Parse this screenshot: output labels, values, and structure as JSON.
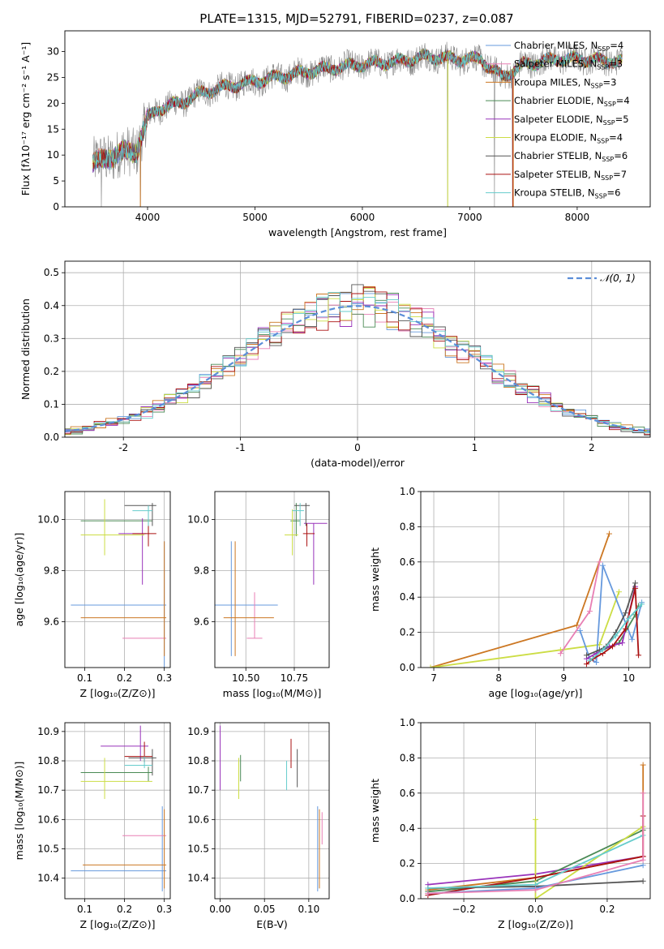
{
  "figure_title": "PLATE=1315, MJD=52791, FIBERID=0237, z=0.087",
  "colors": {
    "chabrier_miles": "#6699dd",
    "salpeter_miles": "#e87fb4",
    "kroupa_miles": "#cc7722",
    "chabrier_elodie": "#4a8a55",
    "salpeter_elodie": "#9933bb",
    "kroupa_elodie": "#ccdd44",
    "chabrier_stelib": "#555555",
    "salpeter_stelib": "#aa1111",
    "kroupa_stelib": "#66cccc",
    "data": "#888888",
    "normal": "#5b8ed8"
  },
  "chart_data": [
    {
      "id": "spectrum",
      "type": "line",
      "title": "PLATE=1315, MJD=52791, FIBERID=0237, z=0.087",
      "xlabel": "wavelength [Angstrom, rest frame]",
      "ylabel": "Flux [fλ10⁻¹⁷ erg cm⁻² s⁻¹ A⁻¹]",
      "xlim": [
        3230,
        8680
      ],
      "ylim": [
        0,
        34
      ],
      "xticks": [
        4000,
        5000,
        6000,
        7000,
        8000
      ],
      "yticks": [
        0,
        5,
        10,
        15,
        20,
        25,
        30
      ],
      "legend_position": "top-right",
      "legend": [
        {
          "label": "Chabrier MILES, N",
          "sub": "SSP",
          "tail": "=4"
        },
        {
          "label": "Salpeter MILES, N",
          "sub": "SSP",
          "tail": "=3"
        },
        {
          "label": "Kroupa MILES, N",
          "sub": "SSP",
          "tail": "=3"
        },
        {
          "label": "Chabrier ELODIE, N",
          "sub": "SSP",
          "tail": "=4"
        },
        {
          "label": "Salpeter ELODIE, N",
          "sub": "SSP",
          "tail": "=5"
        },
        {
          "label": "Kroupa ELODIE, N",
          "sub": "SSP",
          "tail": "=4"
        },
        {
          "label": "Chabrier STELIB, N",
          "sub": "SSP",
          "tail": "=6"
        },
        {
          "label": "Salpeter STELIB, N",
          "sub": "SSP",
          "tail": "=7"
        },
        {
          "label": "Kroupa STELIB, N",
          "sub": "SSP",
          "tail": "=6"
        }
      ],
      "continuum": [
        [
          3500,
          8.5
        ],
        [
          3700,
          10
        ],
        [
          3900,
          11
        ],
        [
          3950,
          14
        ],
        [
          4000,
          17
        ],
        [
          4100,
          19
        ],
        [
          4300,
          20
        ],
        [
          4500,
          22
        ],
        [
          4800,
          23.5
        ],
        [
          5200,
          25
        ],
        [
          5600,
          26.5
        ],
        [
          6000,
          27.5
        ],
        [
          6300,
          28
        ],
        [
          6600,
          29
        ],
        [
          6900,
          28.5
        ],
        [
          7100,
          28.5
        ],
        [
          7300,
          25
        ],
        [
          7500,
          27.5
        ],
        [
          7800,
          28.5
        ],
        [
          8100,
          28.5
        ],
        [
          8400,
          28
        ]
      ],
      "dips": [
        [
          3933,
          0
        ],
        [
          6795,
          0
        ],
        [
          7400,
          0
        ],
        [
          3570,
          0
        ],
        [
          7230,
          0
        ]
      ]
    },
    {
      "id": "residuals",
      "type": "histogram",
      "xlabel": "(data-model)/error",
      "ylabel": "Normed distribution",
      "xlim": [
        -2.5,
        2.5
      ],
      "ylim": [
        0,
        0.535
      ],
      "xticks": [
        -2,
        -1,
        0,
        1,
        2
      ],
      "yticks": [
        0.0,
        0.1,
        0.2,
        0.3,
        0.4,
        0.5
      ],
      "legend_position": "top-right",
      "legend_label": "𝒩(0, 1)",
      "normal_mean": 0,
      "normal_sigma": 1,
      "bin_width": 0.1
    },
    {
      "id": "age_vs_Z",
      "type": "errorbar",
      "xlabel": "Z [log₁₀(Z/Z⊙)]",
      "ylabel": "age  [log₁₀(age/yr)]",
      "xlim": [
        0.05,
        0.315
      ],
      "ylim": [
        9.42,
        10.11
      ],
      "xticks": [
        0.1,
        0.2,
        0.3
      ],
      "yticks": [
        9.6,
        9.8,
        10.0
      ],
      "points": [
        {
          "model": "chabrier_miles",
          "x": 0.3,
          "y": 9.665,
          "xerr": [
            0.235,
            0.005
          ],
          "yerr": [
            0.25,
            0.25
          ]
        },
        {
          "model": "salpeter_miles",
          "x": 0.3,
          "y": 9.535,
          "xerr": [
            0.105,
            0.005
          ],
          "yerr": [
            0.0,
            0.0
          ]
        },
        {
          "model": "kroupa_miles",
          "x": 0.3,
          "y": 9.615,
          "xerr": [
            0.21,
            0.005
          ],
          "yerr": [
            0.15,
            0.3
          ]
        },
        {
          "model": "chabrier_elodie",
          "x": 0.26,
          "y": 9.995,
          "xerr": [
            0.17,
            0.01
          ],
          "yerr": [
            0.06,
            0.06
          ]
        },
        {
          "model": "salpeter_elodie",
          "x": 0.245,
          "y": 9.945,
          "xerr": [
            0.06,
            0.01
          ],
          "yerr": [
            0.2,
            0.06
          ]
        },
        {
          "model": "kroupa_elodie",
          "x": 0.15,
          "y": 9.94,
          "xerr": [
            0.06,
            0.1
          ],
          "yerr": [
            0.08,
            0.14
          ]
        },
        {
          "model": "chabrier_stelib",
          "x": 0.27,
          "y": 10.055,
          "xerr": [
            0.07,
            0.01
          ],
          "yerr": [
            0.08,
            0.01
          ]
        },
        {
          "model": "salpeter_stelib",
          "x": 0.26,
          "y": 9.945,
          "xerr": [
            0.04,
            0.02
          ],
          "yerr": [
            0.05,
            0.04
          ]
        },
        {
          "model": "kroupa_stelib",
          "x": 0.26,
          "y": 10.035,
          "xerr": [
            0.04,
            0.01
          ],
          "yerr": [
            0.06,
            0.02
          ]
        }
      ]
    },
    {
      "id": "age_vs_mass",
      "type": "errorbar",
      "xlabel": "mass [log₁₀(M/M⊙)]",
      "xlim": [
        10.34,
        10.93
      ],
      "ylim": [
        9.42,
        10.11
      ],
      "xticks": [
        10.5,
        10.75
      ],
      "xtick_labels": [
        "10.50",
        "10.75"
      ],
      "yticks": [
        9.6,
        9.8,
        10.0
      ],
      "points": [
        {
          "model": "chabrier_miles",
          "x": 10.425,
          "y": 9.665,
          "xerr": [
            0.09,
            0.24
          ],
          "yerr": [
            0.2,
            0.25
          ]
        },
        {
          "model": "salpeter_miles",
          "x": 10.545,
          "y": 9.535,
          "xerr": [
            0.04,
            0.04
          ],
          "yerr": [
            0.0,
            0.18
          ]
        },
        {
          "model": "kroupa_miles",
          "x": 10.445,
          "y": 9.615,
          "xerr": [
            0.06,
            0.2
          ],
          "yerr": [
            0.15,
            0.3
          ]
        },
        {
          "model": "chabrier_elodie",
          "x": 10.76,
          "y": 9.995,
          "xerr": [
            0.03,
            0.02
          ],
          "yerr": [
            0.06,
            0.07
          ]
        },
        {
          "model": "salpeter_elodie",
          "x": 10.85,
          "y": 9.985,
          "xerr": [
            0.05,
            0.07
          ],
          "yerr": [
            0.24,
            0.0
          ]
        },
        {
          "model": "kroupa_elodie",
          "x": 10.74,
          "y": 9.94,
          "xerr": [
            0.04,
            0.03
          ],
          "yerr": [
            0.08,
            0.1
          ]
        },
        {
          "model": "chabrier_stelib",
          "x": 10.81,
          "y": 10.055,
          "xerr": [
            0.06,
            0.02
          ],
          "yerr": [
            0.08,
            0.01
          ]
        },
        {
          "model": "salpeter_stelib",
          "x": 10.815,
          "y": 9.945,
          "xerr": [
            0.02,
            0.04
          ],
          "yerr": [
            0.05,
            0.04
          ]
        },
        {
          "model": "kroupa_stelib",
          "x": 10.78,
          "y": 10.035,
          "xerr": [
            0.04,
            0.02
          ],
          "yerr": [
            0.06,
            0.03
          ]
        }
      ]
    },
    {
      "id": "weight_vs_age",
      "type": "line",
      "xlabel": "age  [log₁₀(age/yr)]",
      "ylabel": "mass weight",
      "xlim": [
        6.8,
        10.33
      ],
      "ylim": [
        0,
        1.0
      ],
      "xticks": [
        7,
        8,
        9,
        10
      ],
      "yticks": [
        0.0,
        0.2,
        0.4,
        0.6,
        0.8,
        1.0
      ],
      "series": [
        {
          "model": "kroupa_miles",
          "x": [
            6.95,
            9.2,
            9.7
          ],
          "y": [
            0.0,
            0.24,
            0.76
          ]
        },
        {
          "model": "kroupa_elodie",
          "x": [
            6.95,
            8.95,
            9.55,
            9.85
          ],
          "y": [
            0.0,
            0.1,
            0.13,
            0.43
          ]
        },
        {
          "model": "salpeter_miles",
          "x": [
            8.95,
            9.4,
            9.55
          ],
          "y": [
            0.08,
            0.32,
            0.6
          ]
        },
        {
          "model": "chabrier_miles",
          "x": [
            9.25,
            9.4,
            9.5,
            9.6,
            10.05,
            10.2
          ],
          "y": [
            0.21,
            0.05,
            0.03,
            0.58,
            0.16,
            0.37
          ]
        },
        {
          "model": "chabrier_elodie",
          "x": [
            9.6,
            9.85,
            10.1,
            10.15
          ],
          "y": [
            0.1,
            0.14,
            0.3,
            0.35
          ]
        },
        {
          "model": "salpeter_elodie",
          "x": [
            9.35,
            9.5,
            9.7,
            9.9,
            10.1
          ],
          "y": [
            0.05,
            0.08,
            0.12,
            0.14,
            0.46
          ]
        },
        {
          "model": "chabrier_stelib",
          "x": [
            9.35,
            9.55,
            9.65,
            9.8,
            9.95,
            10.1
          ],
          "y": [
            0.07,
            0.1,
            0.12,
            0.2,
            0.31,
            0.48
          ]
        },
        {
          "model": "salpeter_stelib",
          "x": [
            9.35,
            9.45,
            9.6,
            9.75,
            9.95,
            10.1,
            10.15
          ],
          "y": [
            0.02,
            0.05,
            0.08,
            0.12,
            0.22,
            0.45,
            0.07
          ]
        },
        {
          "model": "kroupa_stelib",
          "x": [
            9.4,
            9.6,
            9.8,
            10.0,
            10.2
          ],
          "y": [
            0.04,
            0.1,
            0.18,
            0.28,
            0.36
          ]
        }
      ]
    },
    {
      "id": "mass_vs_Z",
      "type": "errorbar",
      "xlabel": "Z [log₁₀(Z/Z⊙)]",
      "ylabel": "mass [log₁₀(M/M⊙)]",
      "xlim": [
        0.05,
        0.315
      ],
      "ylim": [
        10.33,
        10.93
      ],
      "xticks": [
        0.1,
        0.2,
        0.3
      ],
      "yticks": [
        10.4,
        10.5,
        10.6,
        10.7,
        10.8,
        10.9
      ],
      "points": [
        {
          "model": "chabrier_miles",
          "x": 0.295,
          "y": 10.425,
          "xerr": [
            0.23,
            0.01
          ],
          "yerr": [
            0.07,
            0.22
          ]
        },
        {
          "model": "salpeter_miles",
          "x": 0.3,
          "y": 10.545,
          "xerr": [
            0.105,
            0.005
          ],
          "yerr": [
            0.0,
            0.0
          ]
        },
        {
          "model": "kroupa_miles",
          "x": 0.3,
          "y": 10.445,
          "xerr": [
            0.205,
            0.005
          ],
          "yerr": [
            0.08,
            0.19
          ]
        },
        {
          "model": "chabrier_elodie",
          "x": 0.26,
          "y": 10.76,
          "xerr": [
            0.17,
            0.01
          ],
          "yerr": [
            0.03,
            0.02
          ]
        },
        {
          "model": "salpeter_elodie",
          "x": 0.24,
          "y": 10.85,
          "xerr": [
            0.1,
            0.02
          ],
          "yerr": [
            0.05,
            0.07
          ]
        },
        {
          "model": "kroupa_elodie",
          "x": 0.15,
          "y": 10.73,
          "xerr": [
            0.06,
            0.12
          ],
          "yerr": [
            0.06,
            0.08
          ]
        },
        {
          "model": "chabrier_stelib",
          "x": 0.27,
          "y": 10.81,
          "xerr": [
            0.06,
            0.01
          ],
          "yerr": [
            0.06,
            0.03
          ]
        },
        {
          "model": "salpeter_stelib",
          "x": 0.25,
          "y": 10.815,
          "xerr": [
            0.05,
            0.02
          ],
          "yerr": [
            0.02,
            0.05
          ]
        },
        {
          "model": "kroupa_stelib",
          "x": 0.25,
          "y": 10.785,
          "xerr": [
            0.05,
            0.02
          ],
          "yerr": [
            0.01,
            0.03
          ]
        }
      ]
    },
    {
      "id": "mass_vs_EBV",
      "type": "errorbar",
      "xlabel": "E(B-V)",
      "xlim": [
        -0.006,
        0.123
      ],
      "ylim": [
        10.33,
        10.93
      ],
      "xticks": [
        0.0,
        0.05,
        0.1
      ],
      "xtick_labels": [
        "0.00",
        "0.05",
        "0.10"
      ],
      "yticks": [
        10.4,
        10.5,
        10.6,
        10.7,
        10.8,
        10.9
      ],
      "points": [
        {
          "model": "chabrier_miles",
          "x": 0.11,
          "y": 10.425,
          "xerr": [
            0,
            0
          ],
          "yerr": [
            0.07,
            0.22
          ]
        },
        {
          "model": "salpeter_miles",
          "x": 0.115,
          "y": 10.545,
          "xerr": [
            0,
            0
          ],
          "yerr": [
            0.03,
            0.08
          ]
        },
        {
          "model": "kroupa_miles",
          "x": 0.112,
          "y": 10.445,
          "xerr": [
            0,
            0
          ],
          "yerr": [
            0.08,
            0.19
          ]
        },
        {
          "model": "chabrier_elodie",
          "x": 0.023,
          "y": 10.76,
          "xerr": [
            0,
            0
          ],
          "yerr": [
            0.03,
            0.06
          ]
        },
        {
          "model": "salpeter_elodie",
          "x": 0.0,
          "y": 10.85,
          "xerr": [
            0,
            0
          ],
          "yerr": [
            0.15,
            0.07
          ]
        },
        {
          "model": "kroupa_elodie",
          "x": 0.021,
          "y": 10.73,
          "xerr": [
            0,
            0
          ],
          "yerr": [
            0.06,
            0.08
          ]
        },
        {
          "model": "chabrier_stelib",
          "x": 0.087,
          "y": 10.77,
          "xerr": [
            0,
            0
          ],
          "yerr": [
            0.06,
            0.07
          ]
        },
        {
          "model": "salpeter_stelib",
          "x": 0.08,
          "y": 10.815,
          "xerr": [
            0,
            0
          ],
          "yerr": [
            0.04,
            0.06
          ]
        },
        {
          "model": "kroupa_stelib",
          "x": 0.075,
          "y": 10.77,
          "xerr": [
            0,
            0
          ],
          "yerr": [
            0.07,
            0.03
          ]
        }
      ]
    },
    {
      "id": "weight_vs_Z",
      "type": "line",
      "xlabel": "Z [log₁₀(Z/Z⊙)]",
      "ylabel": "mass weight",
      "xlim": [
        -0.32,
        0.32
      ],
      "ylim": [
        0,
        1.0
      ],
      "xticks": [
        -0.2,
        0.0,
        0.2
      ],
      "xtick_labels": [
        "−0.2",
        "0.0",
        "0.2"
      ],
      "yticks": [
        0.0,
        0.2,
        0.4,
        0.6,
        0.8,
        1.0
      ],
      "series": [
        {
          "model": "salpeter_elodie",
          "x": [
            -0.3,
            0.0,
            0.3
          ],
          "y": [
            0.08,
            0.14,
            0.24
          ]
        },
        {
          "model": "chabrier_elodie",
          "x": [
            -0.3,
            0.0,
            0.3
          ],
          "y": [
            0.04,
            0.1,
            0.39
          ]
        },
        {
          "model": "kroupa_elodie",
          "x": [
            0.0,
            0.0,
            0.3
          ],
          "y": [
            0.45,
            0.0,
            0.41
          ]
        },
        {
          "model": "kroupa_miles",
          "x": [
            -0.3,
            0.0,
            0.3,
            0.3
          ],
          "y": [
            0.05,
            0.12,
            0.24,
            0.76
          ]
        },
        {
          "model": "salpeter_stelib",
          "x": [
            -0.3,
            0.0,
            0.3,
            0.3
          ],
          "y": [
            0.02,
            0.12,
            0.24,
            0.47
          ]
        },
        {
          "model": "chabrier_stelib",
          "x": [
            -0.3,
            0.0,
            0.3
          ],
          "y": [
            0.06,
            0.07,
            0.1
          ]
        },
        {
          "model": "kroupa_stelib",
          "x": [
            -0.3,
            0.0,
            0.3
          ],
          "y": [
            0.06,
            0.08,
            0.36
          ]
        },
        {
          "model": "chabrier_miles",
          "x": [
            -0.3,
            0.0,
            0.3
          ],
          "y": [
            0.03,
            0.06,
            0.19
          ]
        },
        {
          "model": "salpeter_miles",
          "x": [
            -0.3,
            0.0,
            0.3,
            0.3
          ],
          "y": [
            0.03,
            0.05,
            0.22,
            0.6
          ]
        }
      ]
    }
  ]
}
